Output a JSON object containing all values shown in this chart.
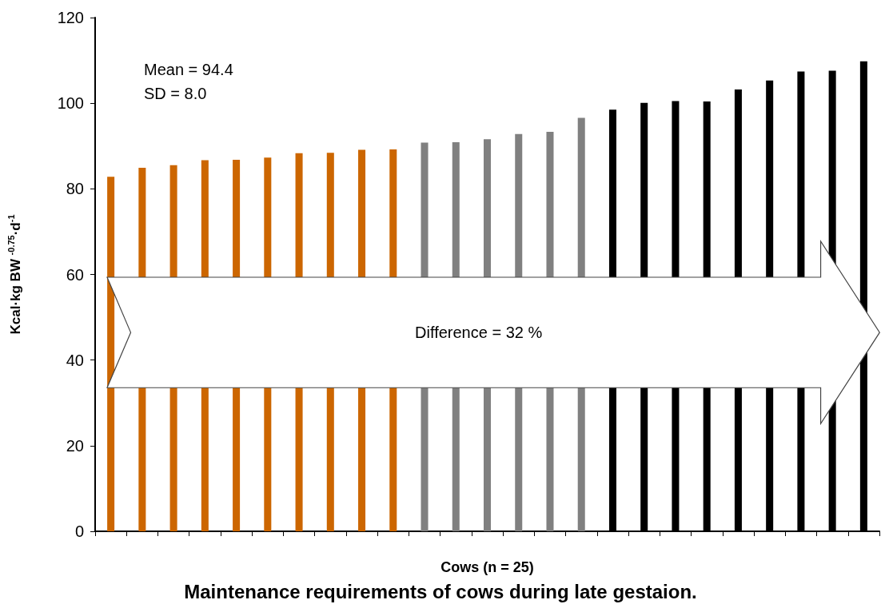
{
  "chart_data": {
    "type": "bar",
    "title": "Maintenance requirements of cows during late gestaion.",
    "xlabel": "Cows (n = 25)",
    "ylabel": "Kcal·kg BW $^{-0.75}$·d$^{-1}$",
    "categories": [
      null,
      null,
      null,
      null,
      null,
      null,
      null,
      null,
      null,
      null,
      null,
      null,
      null,
      null,
      null,
      null,
      null,
      null,
      null,
      null,
      null,
      null,
      null,
      null,
      null
    ],
    "values": [
      82.8,
      84.9,
      85.5,
      86.7,
      86.8,
      87.3,
      88.3,
      88.4,
      89.1,
      89.2,
      90.8,
      90.9,
      91.6,
      92.8,
      93.3,
      96.6,
      98.5,
      100.1,
      100.5,
      100.4,
      103.2,
      105.3,
      107.4,
      107.6,
      109.8
    ],
    "colors": [
      "#cc6600",
      "#cc6600",
      "#cc6600",
      "#cc6600",
      "#cc6600",
      "#cc6600",
      "#cc6600",
      "#cc6600",
      "#cc6600",
      "#cc6600",
      "#808080",
      "#808080",
      "#808080",
      "#808080",
      "#808080",
      "#808080",
      "#000000",
      "#000000",
      "#000000",
      "#000000",
      "#000000",
      "#000000",
      "#000000",
      "#000000",
      "#000000"
    ],
    "ylim": [
      0,
      120
    ],
    "yticks": [
      0,
      20,
      40,
      60,
      80,
      100,
      120
    ],
    "annotations": [
      "Mean = 94.4",
      "SD = 8.0",
      "Difference = 32 %"
    ]
  }
}
